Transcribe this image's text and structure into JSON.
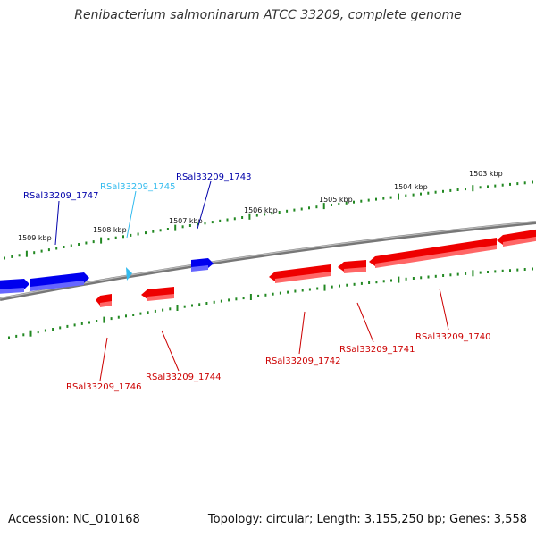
{
  "title": "Renibacterium salmoninarum ATCC 33209, complete genome",
  "footer": {
    "accession": "Accession: NC_010168",
    "summary": "Topology: circular; Length: 3,155,250 bp; Genes: 3,558"
  },
  "colors": {
    "forward_gene": "#0000ee",
    "reverse_gene": "#ee0000",
    "highlight_gene": "#33bbee",
    "tick": "#228822",
    "backbone": "#888888"
  },
  "scale_labels": [
    {
      "name": "kbp-1509",
      "text": "1509 kbp"
    },
    {
      "name": "kbp-1508",
      "text": "1508 kbp"
    },
    {
      "name": "kbp-1507",
      "text": "1507 kbp"
    },
    {
      "name": "kbp-1506",
      "text": "1506 kbp"
    },
    {
      "name": "kbp-1505",
      "text": "1505 kbp"
    },
    {
      "name": "kbp-1504",
      "text": "1504 kbp"
    },
    {
      "name": "kbp-1503",
      "text": "1503 kbp"
    }
  ],
  "genes": [
    {
      "id": "RSal33209_1747",
      "strand": "forward"
    },
    {
      "id": "RSal33209_1745",
      "strand": "forward",
      "highlight": true
    },
    {
      "id": "RSal33209_1743",
      "strand": "forward"
    },
    {
      "id": "RSal33209_1746",
      "strand": "reverse"
    },
    {
      "id": "RSal33209_1744",
      "strand": "reverse"
    },
    {
      "id": "RSal33209_1742",
      "strand": "reverse"
    },
    {
      "id": "RSal33209_1741",
      "strand": "reverse"
    },
    {
      "id": "RSal33209_1740",
      "strand": "reverse"
    }
  ]
}
